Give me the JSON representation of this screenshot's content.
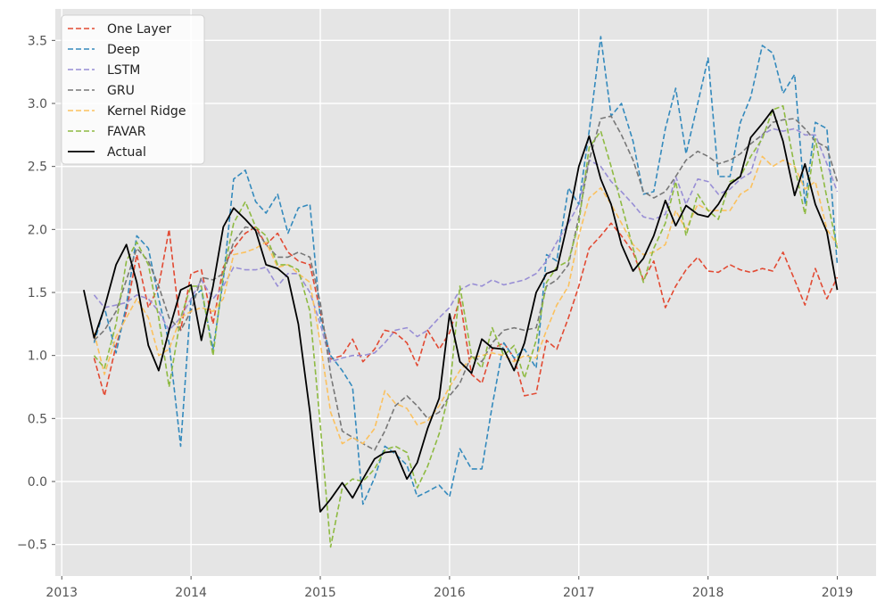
{
  "chart_data": {
    "type": "line",
    "title": "",
    "xlabel": "",
    "ylabel": "",
    "xlim": [
      2012.95,
      2019.3
    ],
    "ylim": [
      -0.75,
      3.75
    ],
    "xticks": [
      2013,
      2014,
      2015,
      2016,
      2017,
      2018,
      2019
    ],
    "yticks": [
      -0.5,
      0.0,
      0.5,
      1.0,
      1.5,
      2.0,
      2.5,
      3.0,
      3.5
    ],
    "x_tick_labels": [
      "2013",
      "2014",
      "2015",
      "2016",
      "2017",
      "2018",
      "2019"
    ],
    "y_tick_labels": [
      "−0.5",
      "0.0",
      "0.5",
      "1.0",
      "1.5",
      "2.0",
      "2.5",
      "3.0",
      "3.5"
    ],
    "grid": true,
    "legend_position": "top-left",
    "x": [
      2013.17,
      2013.25,
      2013.33,
      2013.42,
      2013.5,
      2013.58,
      2013.67,
      2013.75,
      2013.83,
      2013.92,
      2014.0,
      2014.08,
      2014.17,
      2014.25,
      2014.33,
      2014.42,
      2014.5,
      2014.58,
      2014.67,
      2014.75,
      2014.83,
      2014.92,
      2015.0,
      2015.08,
      2015.17,
      2015.25,
      2015.33,
      2015.42,
      2015.5,
      2015.58,
      2015.67,
      2015.75,
      2015.83,
      2015.92,
      2016.0,
      2016.08,
      2016.17,
      2016.25,
      2016.33,
      2016.42,
      2016.5,
      2016.58,
      2016.67,
      2016.75,
      2016.83,
      2016.92,
      2017.0,
      2017.08,
      2017.17,
      2017.25,
      2017.33,
      2017.42,
      2017.5,
      2017.58,
      2017.67,
      2017.75,
      2017.83,
      2017.92,
      2018.0,
      2018.08,
      2018.17,
      2018.25,
      2018.33,
      2018.42,
      2018.5,
      2018.58,
      2018.67,
      2018.75,
      2018.83,
      2018.92,
      2019.0
    ],
    "series": [
      {
        "name": "One Layer",
        "color": "#e24a33",
        "dashed": true,
        "values": [
          null,
          0.98,
          0.68,
          1.08,
          1.35,
          1.8,
          1.38,
          1.55,
          2.0,
          1.2,
          1.65,
          1.68,
          1.25,
          1.7,
          1.85,
          1.97,
          2.02,
          1.88,
          1.97,
          1.82,
          1.75,
          1.72,
          1.35,
          0.97,
          1.0,
          1.13,
          0.95,
          1.05,
          1.2,
          1.18,
          1.1,
          0.92,
          1.2,
          1.05,
          1.18,
          1.45,
          0.85,
          0.78,
          1.05,
          1.1,
          0.98,
          0.68,
          0.7,
          1.12,
          1.05,
          1.3,
          1.55,
          1.85,
          1.95,
          2.05,
          1.95,
          1.82,
          1.6,
          1.75,
          1.38,
          1.55,
          1.68,
          1.78,
          1.67,
          1.66,
          1.72,
          1.68,
          1.66,
          1.69,
          1.67,
          1.82,
          1.6,
          1.4,
          1.69,
          1.45,
          1.62
        ]
      },
      {
        "name": "Deep",
        "color": "#348abd",
        "dashed": true,
        "values": [
          null,
          1.1,
          1.38,
          1.02,
          1.4,
          1.95,
          1.85,
          1.45,
          1.1,
          0.28,
          1.45,
          1.52,
          1.05,
          1.6,
          2.4,
          2.47,
          2.22,
          2.13,
          2.28,
          1.97,
          2.17,
          2.2,
          1.3,
          1.0,
          0.88,
          0.75,
          -0.18,
          0.03,
          0.28,
          0.22,
          0.13,
          -0.12,
          -0.08,
          -0.03,
          -0.12,
          0.26,
          0.1,
          0.1,
          0.6,
          1.1,
          0.98,
          1.05,
          0.9,
          1.8,
          1.75,
          2.33,
          2.2,
          2.78,
          3.53,
          2.9,
          3.0,
          2.7,
          2.28,
          2.3,
          2.8,
          3.12,
          2.6,
          3.0,
          3.36,
          2.42,
          2.42,
          2.85,
          3.05,
          3.46,
          3.4,
          3.08,
          3.23,
          2.2,
          2.85,
          2.8,
          1.72
        ]
      },
      {
        "name": "LSTM",
        "color": "#988ed5",
        "dashed": true,
        "values": [
          null,
          1.48,
          1.38,
          1.4,
          1.42,
          1.48,
          1.45,
          1.35,
          1.2,
          1.3,
          1.45,
          1.6,
          1.45,
          1.55,
          1.7,
          1.68,
          1.68,
          1.7,
          1.55,
          1.65,
          1.65,
          1.5,
          1.25,
          0.95,
          0.98,
          1.0,
          1.0,
          1.02,
          1.1,
          1.2,
          1.22,
          1.15,
          1.2,
          1.3,
          1.38,
          1.52,
          1.57,
          1.55,
          1.6,
          1.56,
          1.58,
          1.6,
          1.65,
          1.75,
          1.9,
          2.05,
          2.2,
          2.55,
          2.5,
          2.38,
          2.3,
          2.2,
          2.1,
          2.08,
          2.12,
          2.42,
          2.2,
          2.4,
          2.38,
          2.28,
          2.32,
          2.4,
          2.45,
          2.75,
          2.8,
          2.78,
          2.8,
          2.75,
          2.75,
          2.52,
          2.3
        ]
      },
      {
        "name": "GRU",
        "color": "#777777",
        "dashed": true,
        "values": [
          null,
          1.12,
          1.2,
          1.35,
          1.6,
          1.85,
          1.75,
          1.55,
          1.3,
          1.2,
          1.35,
          1.62,
          1.6,
          1.65,
          1.9,
          2.02,
          2.0,
          1.88,
          1.78,
          1.78,
          1.82,
          1.78,
          1.42,
          0.85,
          0.4,
          0.35,
          0.3,
          0.25,
          0.4,
          0.6,
          0.68,
          0.6,
          0.5,
          0.55,
          0.68,
          0.78,
          1.0,
          0.95,
          1.1,
          1.2,
          1.22,
          1.2,
          1.22,
          1.55,
          1.6,
          1.72,
          2.1,
          2.55,
          2.88,
          2.9,
          2.75,
          2.55,
          2.3,
          2.25,
          2.3,
          2.42,
          2.55,
          2.62,
          2.58,
          2.52,
          2.55,
          2.6,
          2.68,
          2.75,
          2.85,
          2.87,
          2.88,
          2.8,
          2.7,
          2.65,
          2.38
        ]
      },
      {
        "name": "Kernel Ridge",
        "color": "#fbc15e",
        "dashed": true,
        "values": [
          null,
          1.18,
          0.85,
          1.15,
          1.3,
          1.45,
          1.3,
          1.0,
          1.05,
          1.3,
          1.35,
          1.38,
          1.35,
          1.45,
          1.8,
          1.82,
          1.85,
          1.9,
          1.7,
          1.72,
          1.65,
          1.58,
          1.1,
          0.55,
          0.3,
          0.35,
          0.3,
          0.42,
          0.72,
          0.62,
          0.58,
          0.45,
          0.48,
          0.6,
          0.75,
          0.88,
          0.98,
          1.0,
          1.02,
          1.0,
          0.95,
          1.0,
          0.98,
          1.2,
          1.4,
          1.55,
          1.95,
          2.25,
          2.33,
          2.2,
          2.05,
          1.88,
          1.8,
          1.82,
          1.88,
          2.15,
          2.0,
          2.2,
          2.15,
          2.15,
          2.15,
          2.28,
          2.33,
          2.58,
          2.5,
          2.55,
          2.5,
          2.32,
          2.38,
          2.0,
          1.88
        ]
      },
      {
        "name": "FAVAR",
        "color": "#8eba42",
        "dashed": true,
        "values": [
          null,
          1.0,
          0.9,
          1.25,
          1.75,
          1.9,
          1.72,
          1.3,
          0.75,
          1.3,
          1.55,
          1.55,
          1.0,
          1.65,
          2.05,
          2.22,
          2.02,
          1.95,
          1.72,
          1.72,
          1.68,
          1.35,
          0.45,
          -0.52,
          -0.05,
          0.02,
          0.0,
          0.1,
          0.25,
          0.28,
          0.23,
          -0.05,
          0.12,
          0.38,
          0.72,
          1.55,
          1.0,
          0.9,
          1.22,
          1.0,
          1.08,
          0.82,
          1.12,
          1.58,
          1.7,
          1.75,
          2.05,
          2.65,
          2.78,
          2.5,
          2.2,
          1.85,
          1.58,
          1.85,
          2.05,
          2.38,
          1.95,
          2.28,
          2.15,
          2.08,
          2.38,
          2.42,
          2.58,
          2.72,
          2.95,
          2.98,
          2.5,
          2.12,
          2.72,
          2.25,
          1.85
        ]
      },
      {
        "name": "Actual",
        "color": "#000000",
        "dashed": false,
        "values": [
          1.52,
          1.14,
          1.38,
          1.72,
          1.88,
          1.58,
          1.08,
          0.88,
          1.2,
          1.52,
          1.56,
          1.12,
          1.55,
          2.02,
          2.17,
          2.08,
          1.99,
          1.72,
          1.69,
          1.62,
          1.25,
          0.55,
          -0.24,
          -0.14,
          -0.01,
          -0.13,
          0.02,
          0.18,
          0.23,
          0.24,
          0.02,
          0.15,
          0.42,
          0.66,
          1.33,
          0.95,
          0.86,
          1.13,
          1.06,
          1.05,
          0.88,
          1.1,
          1.5,
          1.65,
          1.68,
          2.08,
          2.5,
          2.74,
          2.4,
          2.2,
          1.88,
          1.67,
          1.77,
          1.95,
          2.23,
          2.03,
          2.19,
          2.12,
          2.1,
          2.2,
          2.36,
          2.42,
          2.73,
          2.84,
          2.95,
          2.7,
          2.27,
          2.52,
          2.2,
          1.98,
          1.52
        ]
      }
    ]
  }
}
